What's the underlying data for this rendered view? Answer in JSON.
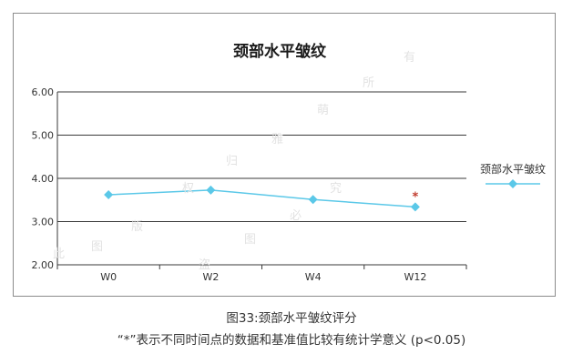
{
  "chart_data": {
    "type": "line",
    "title": "颈部水平皱纹",
    "categories": [
      "W0",
      "W2",
      "W4",
      "W12"
    ],
    "series": [
      {
        "name": "颈部水平皱纹",
        "values": [
          3.62,
          3.73,
          3.51,
          3.34
        ],
        "color": "#5bc8e8"
      }
    ],
    "ylim": [
      2.0,
      6.0
    ],
    "yticks": [
      "2.00",
      "3.00",
      "4.00",
      "5.00",
      "6.00"
    ],
    "grid": true,
    "legend_position": "right",
    "annotations": [
      {
        "category": "W12",
        "text": "*",
        "color": "#c0392b"
      }
    ]
  },
  "caption": "图33:颈部水平皱纹评分",
  "note": "“*”表示不同时间点的数据和基准值比较有统计学意义 (p<0.05)",
  "watermark": [
    "有",
    "所",
    "萌",
    "雅",
    "归",
    "权",
    "版",
    "图",
    "此",
    "究",
    "必",
    "图",
    "盗"
  ]
}
